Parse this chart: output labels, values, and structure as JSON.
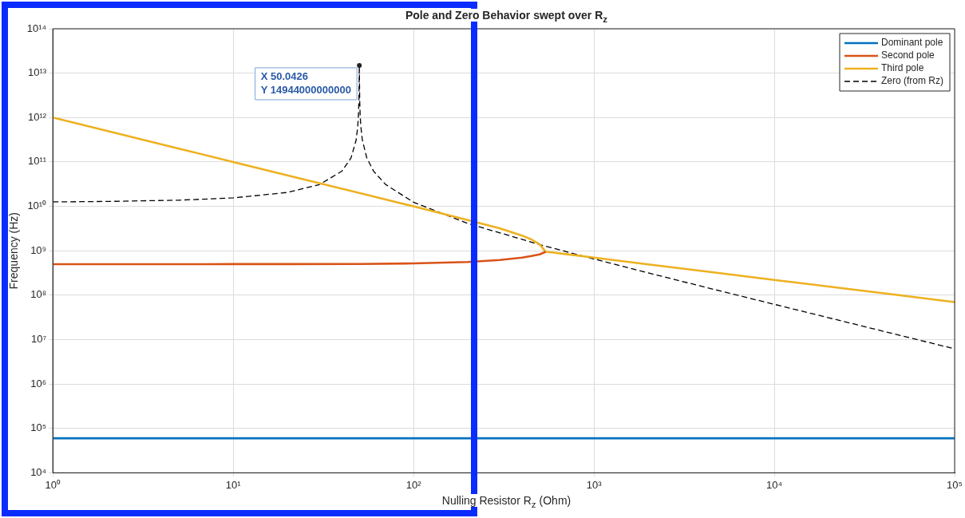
{
  "chart_data": {
    "type": "line",
    "title": "Pole and Zero Behavior swept over R$_{z}$",
    "xlabel": "Nulling Resistor R$_{z}$ (Ohm)",
    "ylabel": "Frequency (Hz)",
    "log": "xy",
    "grid": true,
    "legend": "top right",
    "xlim": [
      1,
      100000
    ],
    "ylim": [
      10000,
      100000000000000
    ],
    "xticks": [
      {
        "value": 1,
        "label": "10⁰"
      },
      {
        "value": 10,
        "label": "10¹"
      },
      {
        "value": 100,
        "label": "10²"
      },
      {
        "value": 1000,
        "label": "10³"
      },
      {
        "value": 10000,
        "label": "10⁴"
      },
      {
        "value": 100000,
        "label": "10⁵"
      }
    ],
    "yticks": [
      {
        "value": 10000,
        "label": "10⁴"
      },
      {
        "value": 100000,
        "label": "10⁵"
      },
      {
        "value": 1000000,
        "label": "10⁶"
      },
      {
        "value": 10000000,
        "label": "10⁷"
      },
      {
        "value": 100000000,
        "label": "10⁸"
      },
      {
        "value": 1000000000,
        "label": "10⁹"
      },
      {
        "value": 10000000000,
        "label": "10¹⁰"
      },
      {
        "value": 100000000000,
        "label": "10¹¹"
      },
      {
        "value": 1000000000000,
        "label": "10¹²"
      },
      {
        "value": 10000000000000,
        "label": "10¹³"
      },
      {
        "value": 100000000000000,
        "label": "10¹⁴"
      }
    ],
    "series": [
      {
        "name": "Dominant pole",
        "color": "#0072bd",
        "x": [
          1,
          100000
        ],
        "values": [
          60000,
          60000
        ]
      },
      {
        "name": "Second pole",
        "color": "#d95319",
        "x": [
          1,
          2,
          5,
          10,
          20,
          50,
          100,
          200,
          300,
          400,
          450,
          500,
          540
        ],
        "values": [
          500000000,
          500000000,
          500000000,
          501000000,
          502000000,
          505000000,
          520000000,
          560000000,
          620000000,
          700000000,
          760000000,
          830000000,
          950000000
        ]
      },
      {
        "name": "Third pole",
        "color": "#edb120",
        "x": [
          1,
          2,
          5,
          10,
          20,
          50,
          100,
          200,
          300,
          400,
          450,
          500,
          540,
          600,
          700,
          1000,
          2000,
          5000,
          10000,
          20000,
          50000,
          100000
        ],
        "values": [
          1000000000000,
          500000000000,
          200000000000,
          100000000000,
          50000000000,
          20000000000,
          10000000000,
          4900000000,
          3200000000,
          2200000000,
          1800000000,
          1400000000,
          950000000,
          910000000,
          840000000,
          700000000,
          495000000,
          313000000,
          221000000,
          157000000,
          99000000,
          70000000
        ]
      },
      {
        "name": "Zero (from Rz)",
        "color": "#000000",
        "line_style": "dashed",
        "x": [
          1,
          2,
          5,
          10,
          20,
          30,
          40,
          45,
          48,
          49,
          49.5,
          49.8,
          50.0426,
          50.3,
          50.6,
          51,
          52,
          55,
          60,
          70,
          100,
          200,
          500,
          1000,
          2000,
          5000,
          10000,
          20000,
          50000,
          100000
        ],
        "values": [
          12600000000,
          12900000000,
          13800000000,
          15500000000,
          20600000000,
          30900000000,
          61800000000,
          123000000000,
          304000000000,
          596000000000,
          1150000000000,
          2580000000000,
          14944000000000,
          2380000000000,
          1110000000000,
          646000000000,
          316000000000,
          125000000000,
          62200000000,
          31100000000,
          12400000000,
          4130000000,
          1380000000,
          653000000,
          318000000,
          125000000,
          62300000,
          31100000,
          12400000,
          6200000
        ]
      }
    ],
    "annotations": [
      {
        "text": "X 50.0426\nY 14944000000000",
        "x": 50.0426,
        "y": 14944000000000
      }
    ]
  }
}
